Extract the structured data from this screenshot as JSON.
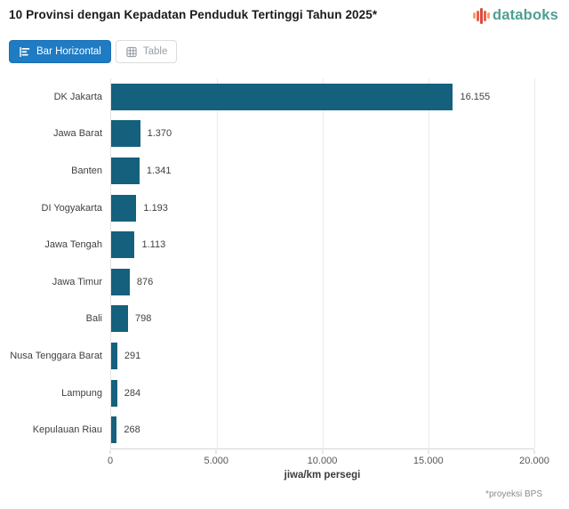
{
  "header": {
    "title": "10 Provinsi dengan Kepadatan Penduduk Tertinggi Tahun 2025*",
    "brand": "databoks"
  },
  "toolbar": {
    "bar_horizontal_label": "Bar Horizontal",
    "table_label": "Table"
  },
  "chart_data": {
    "type": "bar",
    "orientation": "horizontal",
    "title": "10 Provinsi dengan Kepadatan Penduduk Tertinggi Tahun 2025*",
    "categories": [
      "DK Jakarta",
      "Jawa Barat",
      "Banten",
      "DI Yogyakarta",
      "Jawa Tengah",
      "Jawa Timur",
      "Bali",
      "Nusa Tenggara Barat",
      "Lampung",
      "Kepulauan Riau"
    ],
    "values": [
      16155,
      1370,
      1341,
      1193,
      1113,
      876,
      798,
      291,
      284,
      268
    ],
    "value_labels": [
      "16.155",
      "1.370",
      "1.341",
      "1.193",
      "1.113",
      "876",
      "798",
      "291",
      "284",
      "268"
    ],
    "xlabel": "jiwa/km persegi",
    "ylabel": "",
    "xlim": [
      0,
      20000
    ],
    "x_ticks": [
      "0",
      "5.000",
      "10.000",
      "15.000",
      "20.000"
    ],
    "x_tick_values": [
      0,
      5000,
      10000,
      15000,
      20000
    ],
    "grid": true,
    "legend": false,
    "bar_color": "#15607d"
  },
  "footer": {
    "note": "*proyeksi BPS"
  },
  "colors": {
    "bar": "#15607d",
    "active_button": "#1e7bc4",
    "brand_text": "#4da092",
    "gridline": "#ebebeb",
    "logo_bars": [
      "#f4a259",
      "#e95f4e",
      "#d94a3d",
      "#e95f4e",
      "#f4a259"
    ]
  }
}
